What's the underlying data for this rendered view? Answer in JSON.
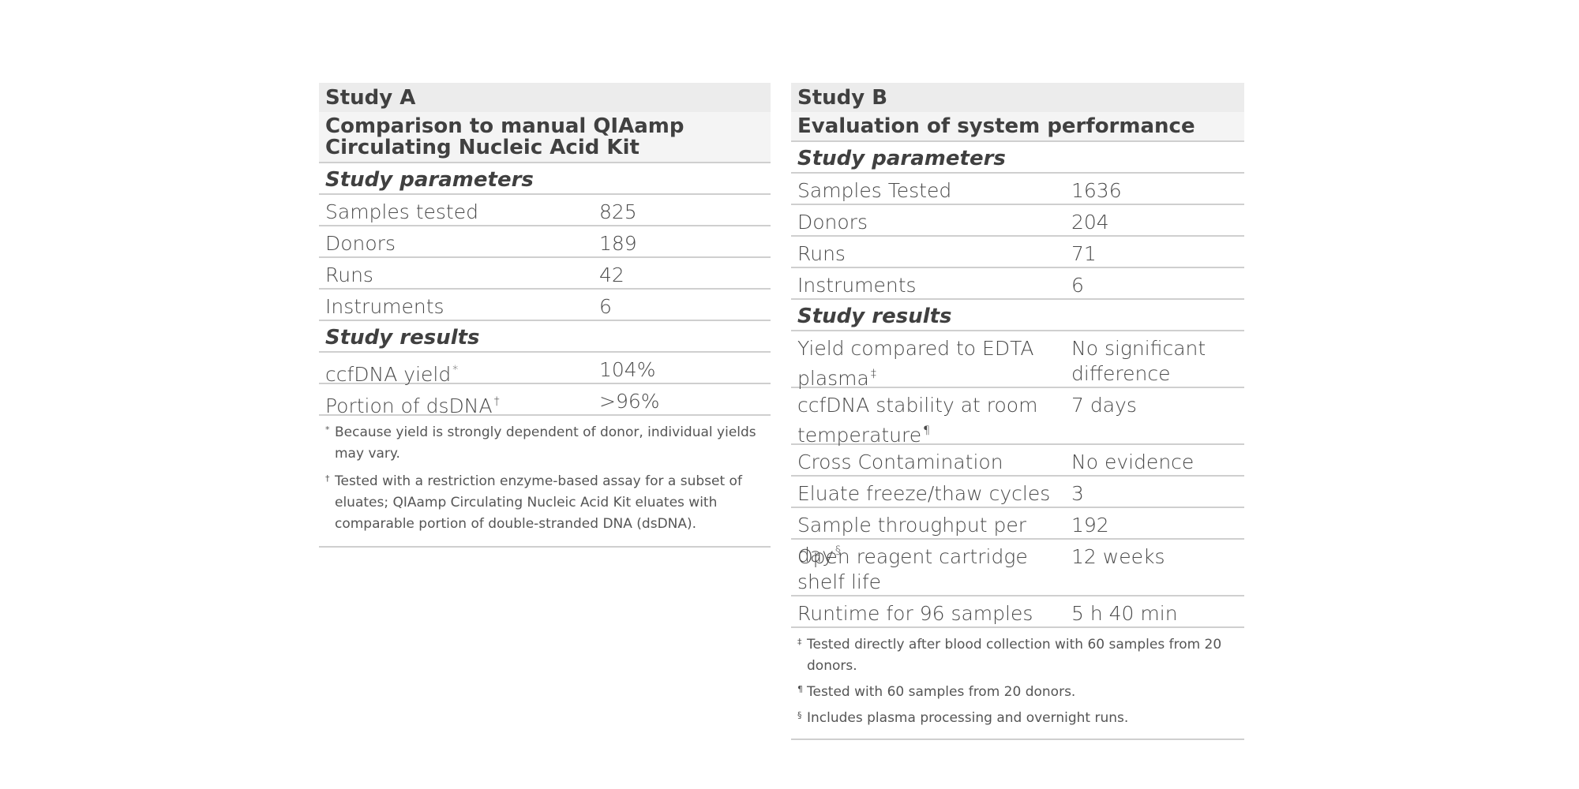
{
  "study_a": {
    "title": "Study A",
    "heading": "Comparison to manual QIAamp Circulating Nucleic Acid Kit",
    "params_label": "Study parameters",
    "params": [
      {
        "label": "Samples tested",
        "value": "825"
      },
      {
        "label": "Donors",
        "value": "189"
      },
      {
        "label": "Runs",
        "value": "42"
      },
      {
        "label": "Instruments",
        "value": "6"
      }
    ],
    "results_label": "Study results",
    "results": [
      {
        "label": "ccfDNA yield",
        "mark": "*",
        "value": "104%"
      },
      {
        "label": "Portion of dsDNA",
        "mark": "†",
        "value": ">96%"
      }
    ],
    "footnotes": [
      {
        "mark": "*",
        "text": "Because yield is strongly dependent of donor, individual yields may vary."
      },
      {
        "mark": "†",
        "text": "Tested with a restriction enzyme-based assay for a subset of eluates; QIAamp Circulating Nucleic Acid Kit eluates with comparable portion of double-stranded DNA (dsDNA)."
      }
    ]
  },
  "study_b": {
    "title": "Study B",
    "heading": "Evaluation of system performance",
    "params_label": "Study parameters",
    "params": [
      {
        "label": "Samples Tested",
        "value": "1636"
      },
      {
        "label": "Donors",
        "value": "204"
      },
      {
        "label": "Runs",
        "value": "71"
      },
      {
        "label": "Instruments",
        "value": "6"
      }
    ],
    "results_label": "Study results",
    "results": [
      {
        "label": "Yield compared to EDTA plasma",
        "mark": "‡",
        "value": "No significant difference"
      },
      {
        "label": "ccfDNA stability at room temperature",
        "mark": "¶",
        "value": "7 days"
      },
      {
        "label": "Cross Contamination",
        "mark": "",
        "value": "No evidence"
      },
      {
        "label": "Eluate freeze/thaw cycles",
        "mark": "",
        "value": "3"
      },
      {
        "label": "Sample throughput per day",
        "mark": "§",
        "value": "192"
      },
      {
        "label": "Open reagent cartridge shelf life",
        "mark": "",
        "value": "12 weeks"
      },
      {
        "label": "Runtime for 96 samples",
        "mark": "",
        "value": "5 h 40 min"
      }
    ],
    "footnotes": [
      {
        "mark": "‡",
        "text": "Tested directly after blood collection with 60 samples from 20 donors."
      },
      {
        "mark": "¶",
        "text": "Tested with 60 samples from 20 donors."
      },
      {
        "mark": "§",
        "text": "Includes plasma processing and overnight runs."
      }
    ]
  }
}
